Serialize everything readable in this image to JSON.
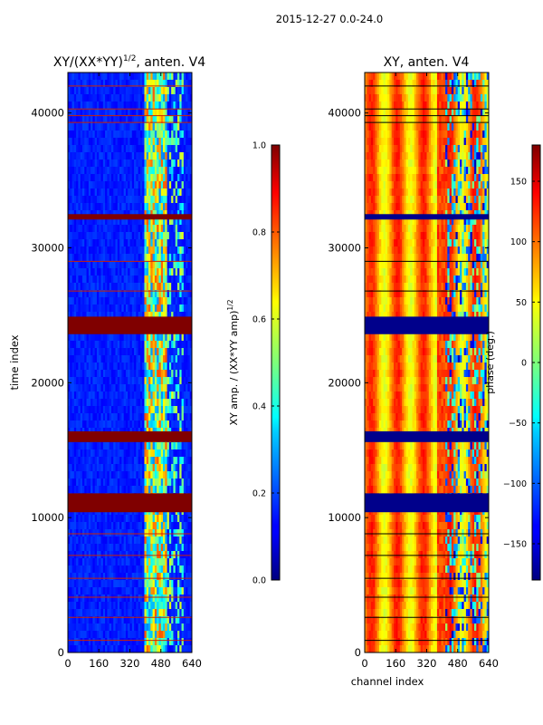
{
  "figure_title": "2015-12-27 0.0-24.0",
  "chart_data": [
    {
      "type": "heatmap",
      "title": "XY/(XX*YY)^{1/2}, anten. V4",
      "title_main": "XY/(XX*YY)",
      "title_exp": "1/2",
      "title_tail": ", anten. V4",
      "xlabel": "",
      "ylabel": "time index",
      "x_ticks": [
        "0",
        "160",
        "320",
        "480",
        "640"
      ],
      "x_tick_values": [
        0,
        160,
        320,
        480,
        640
      ],
      "y_ticks": [
        "0",
        "10000",
        "20000",
        "30000",
        "40000"
      ],
      "y_tick_values": [
        0,
        10000,
        20000,
        30000,
        40000
      ],
      "xlim": [
        0,
        640
      ],
      "ylim": [
        0,
        43000
      ],
      "flagged_time_ranges": [
        [
          10400,
          11800
        ],
        [
          15600,
          16400
        ],
        [
          23600,
          24900
        ],
        [
          32100,
          32500
        ]
      ],
      "thin_flag_lines": [
        900,
        2600,
        4100,
        5500,
        7200,
        8800,
        26800,
        29000,
        39300,
        39800,
        40300,
        42000
      ],
      "high_signal_channel_range": [
        400,
        500
      ]
    },
    {
      "type": "heatmap",
      "title": "XY, anten. V4",
      "xlabel": "channel index",
      "ylabel": "",
      "x_ticks": [
        "0",
        "160",
        "320",
        "480",
        "640"
      ],
      "x_tick_values": [
        0,
        160,
        320,
        480,
        640
      ],
      "y_ticks": [
        "0",
        "10000",
        "20000",
        "30000",
        "40000"
      ],
      "y_tick_values": [
        0,
        10000,
        20000,
        30000,
        40000
      ],
      "xlim": [
        0,
        640
      ],
      "ylim": [
        0,
        43000
      ],
      "flagged_time_ranges": [
        [
          10400,
          11800
        ],
        [
          15600,
          16400
        ],
        [
          23600,
          24900
        ],
        [
          32100,
          32500
        ]
      ],
      "thin_flag_lines": [
        900,
        2600,
        4100,
        5500,
        7200,
        8800,
        26800,
        29000,
        39300,
        39800,
        40300,
        42000
      ]
    }
  ],
  "colorbars": [
    {
      "label_main": "XY amp. / (XX*YY amp)",
      "label_exp": "1/2",
      "range": [
        0.0,
        1.0
      ],
      "ticks": [
        0.0,
        0.2,
        0.4,
        0.6,
        0.8,
        1.0
      ],
      "tick_labels": [
        "0.0",
        "0.2",
        "0.4",
        "0.6",
        "0.8",
        "1.0"
      ]
    },
    {
      "label": "phase (deg.)",
      "range": [
        -180,
        180
      ],
      "ticks": [
        -150,
        -100,
        -50,
        0,
        50,
        100,
        150
      ],
      "tick_labels": [
        "−150",
        "−100",
        "−50",
        "0",
        "50",
        "100",
        "150"
      ]
    }
  ],
  "colors": {
    "jet_min": "#00007f",
    "jet_max": "#7f0000",
    "flag": "#800000",
    "phase_flag": "#00008b"
  }
}
